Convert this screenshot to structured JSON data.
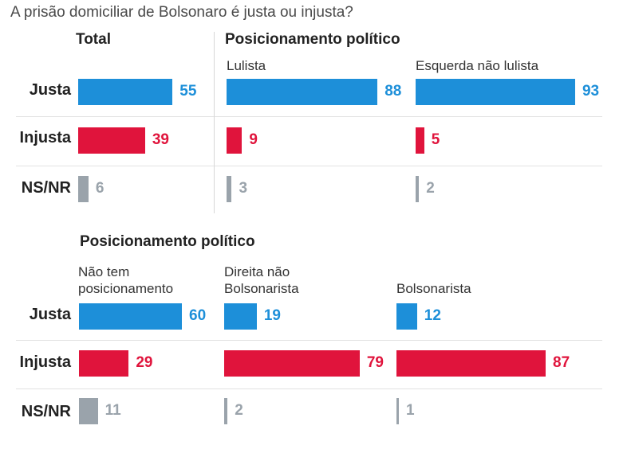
{
  "title": "A prisão domiciliar de Bolsonaro é justa ou injusta?",
  "colors": {
    "justa": "#1d8fd9",
    "injusta": "#e0143c",
    "nsnr": "#9aa3ab"
  },
  "top": {
    "total_header": "Total",
    "political_header": "Posicionamento político"
  },
  "bottom": {
    "political_header": "Posicionamento político"
  },
  "row_labels": [
    "Justa",
    "Injusta",
    "NS/NR"
  ],
  "chart_data": [
    {
      "type": "bar",
      "panel": "Total",
      "categories": [
        "Justa",
        "Injusta",
        "NS/NR"
      ],
      "series": [
        {
          "name": "Total",
          "values": [
            55,
            39,
            6
          ]
        }
      ]
    },
    {
      "type": "bar",
      "panel": "Posicionamento político",
      "categories": [
        "Justa",
        "Injusta",
        "NS/NR"
      ],
      "series": [
        {
          "name": "Lulista",
          "values": [
            88,
            9,
            3
          ]
        },
        {
          "name": "Esquerda não lulista",
          "values": [
            93,
            5,
            2
          ]
        }
      ]
    },
    {
      "type": "bar",
      "panel": "Posicionamento político",
      "categories": [
        "Justa",
        "Injusta",
        "NS/NR"
      ],
      "series": [
        {
          "name": "Não tem posicionamento",
          "label_lines": [
            "Não tem",
            "posicionamento"
          ],
          "values": [
            60,
            29,
            11
          ]
        },
        {
          "name": "Direita não Bolsonarista",
          "label_lines": [
            "Direita não",
            "Bolsonarista"
          ],
          "values": [
            19,
            79,
            2
          ]
        },
        {
          "name": "Bolsonarista",
          "label_lines": [
            "Bolsonarista"
          ],
          "values": [
            12,
            87,
            1
          ]
        }
      ]
    }
  ]
}
